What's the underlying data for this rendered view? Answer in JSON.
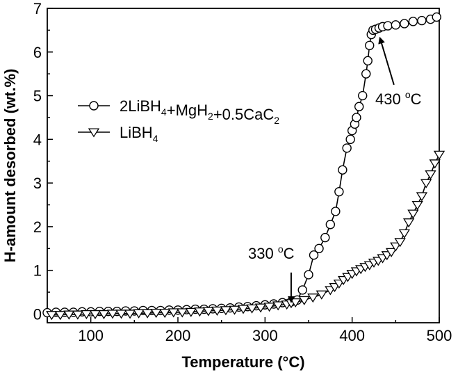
{
  "chart_data": {
    "type": "line",
    "xlabel": "Temperature (°C)",
    "ylabel": "H-amount desorbed (wt.%)",
    "xlim": [
      50,
      500
    ],
    "ylim": [
      -0.2,
      7
    ],
    "x_ticks": [
      100,
      200,
      300,
      400,
      500
    ],
    "y_ticks": [
      0,
      1,
      2,
      3,
      4,
      5,
      6,
      7
    ],
    "x_tick_labels": [
      "100",
      "200",
      "300",
      "400",
      "500"
    ],
    "y_tick_labels": [
      "0",
      "1",
      "2",
      "3",
      "4",
      "5",
      "6",
      "7"
    ],
    "grid": false,
    "legend_position": "upper-left",
    "series": [
      {
        "name": "2LiBH4+MgH2+0.5CaC2",
        "name_parts": [
          {
            "t": "2LiBH"
          },
          {
            "t": "4",
            "sub": true
          },
          {
            "t": "+MgH"
          },
          {
            "t": "2",
            "sub": true
          },
          {
            "t": "+0.5CaC"
          },
          {
            "t": "2",
            "sub": true
          }
        ],
        "marker": "circle",
        "x": [
          50,
          60,
          70,
          80,
          90,
          100,
          110,
          120,
          130,
          140,
          150,
          160,
          170,
          180,
          190,
          200,
          210,
          220,
          230,
          240,
          250,
          260,
          270,
          280,
          290,
          300,
          310,
          320,
          330,
          337,
          343,
          350,
          356,
          362,
          369,
          375,
          381,
          385,
          389,
          394,
          398,
          400,
          403,
          405,
          408,
          412,
          416,
          418,
          420,
          422,
          424,
          427,
          431,
          435,
          441,
          450,
          460,
          470,
          480,
          490,
          497
        ],
        "y": [
          0.03,
          0.04,
          0.04,
          0.04,
          0.05,
          0.05,
          0.06,
          0.06,
          0.06,
          0.07,
          0.07,
          0.08,
          0.08,
          0.08,
          0.09,
          0.09,
          0.1,
          0.11,
          0.11,
          0.12,
          0.13,
          0.14,
          0.16,
          0.17,
          0.19,
          0.21,
          0.23,
          0.26,
          0.28,
          0.32,
          0.55,
          0.9,
          1.35,
          1.5,
          1.75,
          2.05,
          2.35,
          2.8,
          3.3,
          3.8,
          4.0,
          4.2,
          4.35,
          4.5,
          4.75,
          5.0,
          5.5,
          5.8,
          6.15,
          6.4,
          6.5,
          6.52,
          6.55,
          6.58,
          6.6,
          6.62,
          6.65,
          6.7,
          6.72,
          6.75,
          6.8
        ]
      },
      {
        "name": "LiBH4",
        "name_parts": [
          {
            "t": "LiBH"
          },
          {
            "t": "4",
            "sub": true
          }
        ],
        "marker": "triangle-down",
        "x": [
          55,
          65,
          75,
          85,
          95,
          105,
          115,
          125,
          135,
          145,
          155,
          165,
          175,
          185,
          195,
          205,
          215,
          225,
          235,
          245,
          255,
          265,
          275,
          285,
          295,
          305,
          315,
          325,
          330,
          335,
          345,
          355,
          365,
          375,
          380,
          385,
          390,
          395,
          400,
          405,
          410,
          415,
          420,
          425,
          430,
          435,
          440,
          445,
          450,
          455,
          460,
          465,
          470,
          475,
          480,
          485,
          490,
          495,
          500
        ],
        "y": [
          -0.02,
          -0.02,
          -0.01,
          -0.01,
          0.0,
          0.0,
          0.0,
          0.01,
          0.01,
          0.01,
          0.02,
          0.02,
          0.03,
          0.03,
          0.04,
          0.04,
          0.05,
          0.06,
          0.07,
          0.08,
          0.09,
          0.1,
          0.12,
          0.13,
          0.15,
          0.17,
          0.2,
          0.22,
          0.25,
          0.27,
          0.32,
          0.38,
          0.45,
          0.55,
          0.62,
          0.7,
          0.78,
          0.85,
          0.92,
          0.98,
          1.03,
          1.08,
          1.12,
          1.18,
          1.22,
          1.28,
          1.35,
          1.42,
          1.55,
          1.65,
          1.85,
          2.1,
          2.3,
          2.5,
          2.7,
          3.0,
          3.2,
          3.45,
          3.65
        ]
      }
    ],
    "annotations": [
      {
        "label": "330",
        "unit": "C",
        "degree": "o",
        "from": [
          330,
          0.95
        ],
        "to": [
          330,
          0.28
        ]
      },
      {
        "label": "430",
        "unit": "C",
        "degree": "o",
        "from": [
          448,
          5.25
        ],
        "to": [
          432,
          6.32
        ]
      }
    ]
  }
}
